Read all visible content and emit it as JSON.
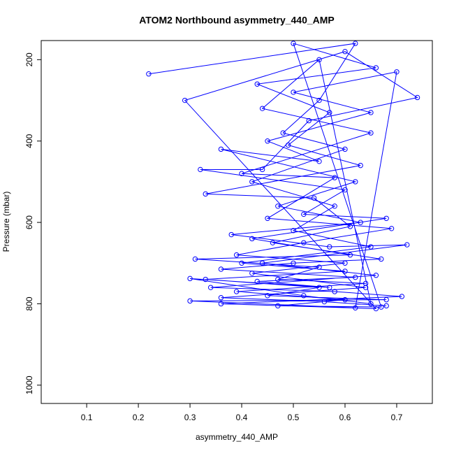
{
  "chart_data": {
    "type": "line",
    "title": "ATOM2 Northbound asymmetry_440_AMP",
    "xlabel": "asymmetry_440_AMP",
    "ylabel": "Pressure (mbar)",
    "color": "#0000ff",
    "markers": true,
    "y_inverted": true,
    "xlim": [
      0.012,
      0.769
    ],
    "ylim": [
      1045,
      153
    ],
    "xticks": [
      0.1,
      0.2,
      0.3,
      0.4,
      0.5,
      0.6,
      0.7
    ],
    "yticks": [
      200,
      400,
      600,
      800,
      1000
    ],
    "x": [
      0.22,
      0.62,
      0.55,
      0.48,
      0.6,
      0.42,
      0.58,
      0.5,
      0.65,
      0.4,
      0.6,
      0.33,
      0.55,
      0.45,
      0.68,
      0.3,
      0.62,
      0.7,
      0.5,
      0.65,
      0.45,
      0.55,
      0.36,
      0.62,
      0.47,
      0.63,
      0.38,
      0.57,
      0.72,
      0.44,
      0.66,
      0.34,
      0.58,
      0.71,
      0.36,
      0.66,
      0.29,
      0.6,
      0.74,
      0.53,
      0.44,
      0.32,
      0.6,
      0.52,
      0.68,
      0.42,
      0.61,
      0.31,
      0.55,
      0.47,
      0.64,
      0.39,
      0.6,
      0.47,
      0.67,
      0.5,
      0.66,
      0.43,
      0.57,
      0.49,
      0.63,
      0.33,
      0.54,
      0.61,
      0.46,
      0.67,
      0.5,
      0.36,
      0.62,
      0.43,
      0.57,
      0.3,
      0.52,
      0.65,
      0.55,
      0.44,
      0.65,
      0.4,
      0.58,
      0.45,
      0.69,
      0.52,
      0.39,
      0.6,
      0.42,
      0.64,
      0.36,
      0.56,
      0.68
    ],
    "values": [
      235,
      160,
      300,
      380,
      420,
      500,
      560,
      620,
      660,
      700,
      720,
      740,
      760,
      780,
      790,
      793,
      810,
      230,
      280,
      330,
      400,
      450,
      420,
      500,
      560,
      600,
      630,
      660,
      655,
      700,
      730,
      760,
      770,
      782,
      800,
      812,
      300,
      180,
      293,
      350,
      470,
      470,
      520,
      580,
      590,
      640,
      680,
      690,
      710,
      740,
      750,
      770,
      790,
      805,
      808,
      160,
      220,
      260,
      330,
      410,
      460,
      530,
      540,
      610,
      650,
      690,
      700,
      715,
      735,
      745,
      760,
      738,
      780,
      800,
      200,
      320,
      380,
      480,
      490,
      590,
      615,
      650,
      680,
      700,
      725,
      760,
      785,
      795,
      805
    ]
  }
}
